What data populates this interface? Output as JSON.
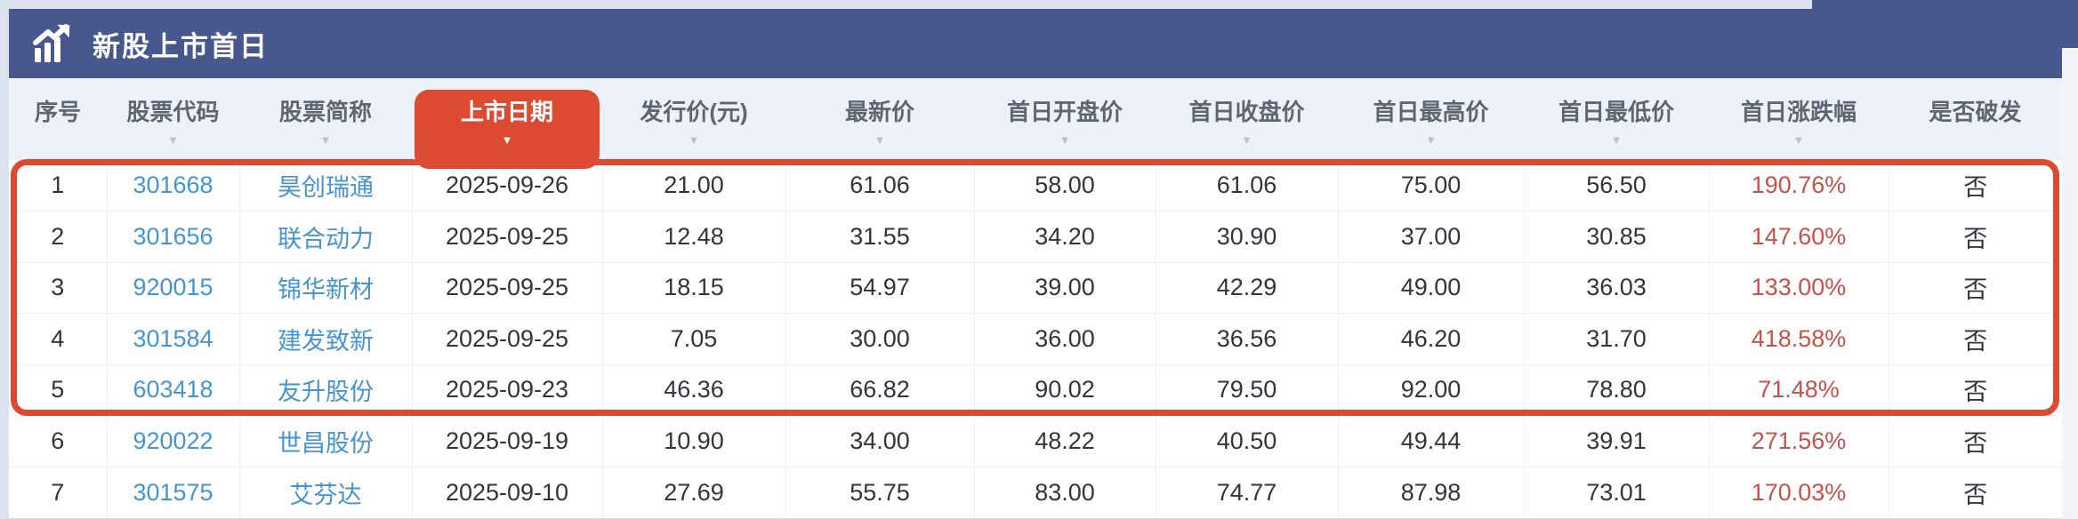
{
  "page": {
    "background_color": "#dbe1ee"
  },
  "header": {
    "title": "新股上市首日",
    "bar_color": "#46588e",
    "icon": "trend-chart-icon"
  },
  "table": {
    "columns": [
      {
        "key": "index",
        "label": "序号",
        "sortable": false,
        "active": false
      },
      {
        "key": "code",
        "label": "股票代码",
        "sortable": true,
        "active": false
      },
      {
        "key": "name",
        "label": "股票简称",
        "sortable": true,
        "active": false
      },
      {
        "key": "listing-date",
        "label": "上市日期",
        "sortable": true,
        "active": true
      },
      {
        "key": "issue-price",
        "label": "发行价(元)",
        "sortable": true,
        "active": false
      },
      {
        "key": "latest-price",
        "label": "最新价",
        "sortable": true,
        "active": false
      },
      {
        "key": "first-day-open",
        "label": "首日开盘价",
        "sortable": true,
        "active": false
      },
      {
        "key": "first-day-close",
        "label": "首日收盘价",
        "sortable": true,
        "active": false
      },
      {
        "key": "first-day-high",
        "label": "首日最高价",
        "sortable": true,
        "active": false
      },
      {
        "key": "first-day-low",
        "label": "首日最低价",
        "sortable": true,
        "active": false
      },
      {
        "key": "first-day-change",
        "label": "首日涨跌幅",
        "sortable": true,
        "active": false
      },
      {
        "key": "broke-issue",
        "label": "是否破发",
        "sortable": false,
        "active": false
      }
    ],
    "rows": [
      [
        "1",
        "301668",
        "昊创瑞通",
        "2025-09-26",
        "21.00",
        "61.06",
        "58.00",
        "61.06",
        "75.00",
        "56.50",
        "190.76%",
        "否"
      ],
      [
        "2",
        "301656",
        "联合动力",
        "2025-09-25",
        "12.48",
        "31.55",
        "34.20",
        "30.90",
        "37.00",
        "30.85",
        "147.60%",
        "否"
      ],
      [
        "3",
        "920015",
        "锦华新材",
        "2025-09-25",
        "18.15",
        "54.97",
        "39.00",
        "42.29",
        "49.00",
        "36.03",
        "133.00%",
        "否"
      ],
      [
        "4",
        "301584",
        "建发致新",
        "2025-09-25",
        "7.05",
        "30.00",
        "36.00",
        "36.56",
        "46.20",
        "31.70",
        "418.58%",
        "否"
      ],
      [
        "5",
        "603418",
        "友升股份",
        "2025-09-23",
        "46.36",
        "66.82",
        "90.02",
        "79.50",
        "92.00",
        "78.80",
        "71.48%",
        "否"
      ],
      [
        "6",
        "920022",
        "世昌股份",
        "2025-09-19",
        "10.90",
        "34.00",
        "48.22",
        "40.50",
        "49.44",
        "39.91",
        "271.56%",
        "否"
      ],
      [
        "7",
        "301575",
        "艾芬达",
        "2025-09-10",
        "27.69",
        "55.75",
        "83.00",
        "74.77",
        "87.98",
        "73.01",
        "170.03%",
        "否"
      ]
    ],
    "highlight": {
      "first_row": 1,
      "last_row": 5,
      "color": "#dc4a31"
    }
  },
  "colors": {
    "accent_red": "#dc4a31",
    "percent_red": "#c2544b",
    "link_blue": "#4695ce",
    "header_text": "#5f6673",
    "body_text": "#32353c",
    "header_band_bg": "#eef2f8"
  }
}
